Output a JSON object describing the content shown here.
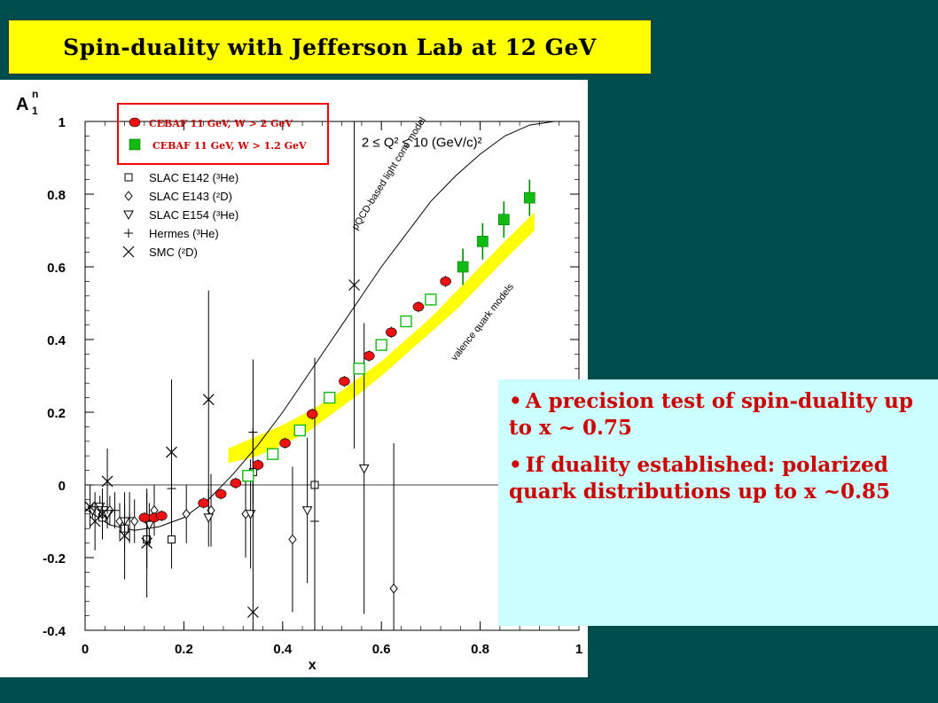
{
  "slide_title": "Spin-duality with Jefferson Lab at 12 GeV",
  "colors": {
    "background": "#004d4d",
    "title_bg": "#ffff00",
    "box_bg": "#ccffff",
    "bullet_text": "#cc0000",
    "cebaf_red": "#ee1111",
    "cebaf_green": "#11bb11",
    "band": "#ffff00"
  },
  "bullets": [
    "A precision test of spin-duality up to x ~ 0.75",
    "If duality established: polarized quark distributions up to x ~0.85"
  ],
  "chart_data": {
    "type": "scatter",
    "ylabel": "A",
    "ylabel_sub": "1",
    "ylabel_sup": "n",
    "xlabel": "x",
    "xlim": [
      0,
      1
    ],
    "ylim": [
      -0.4,
      1
    ],
    "x_ticks": [
      "0",
      "0.2",
      "0.4",
      "0.6",
      "0.8",
      "1"
    ],
    "y_ticks": [
      "-0.4",
      "-0.2",
      "0",
      "0.2",
      "0.4",
      "0.6",
      "0.8",
      "1"
    ],
    "q2_label": "2 ≤ Q² ≤ 10 (GeV/c)²",
    "legend_highlight": [
      "CEBAF 11 GeV, W > 2 GeV",
      "CEBAF 11 GeV, W > 1.2 GeV"
    ],
    "legend": [
      "SLAC E142 (³He)",
      "SLAC E143 (²D)",
      "SLAC E154 (³He)",
      "Hermes (³He)",
      "SMC (²D)"
    ],
    "curve_labels": [
      "pQCD-based light cone model",
      "valence quark models"
    ],
    "series": [
      {
        "name": "CEBAF 11 GeV, W > 2 GeV",
        "marker": "red-circle",
        "points": [
          [
            0.12,
            -0.09
          ],
          [
            0.14,
            -0.09
          ],
          [
            0.155,
            -0.085
          ],
          [
            0.24,
            -0.05
          ],
          [
            0.275,
            -0.025
          ],
          [
            0.305,
            0.005
          ],
          [
            0.35,
            0.055
          ],
          [
            0.405,
            0.115
          ],
          [
            0.46,
            0.195
          ],
          [
            0.525,
            0.285
          ],
          [
            0.575,
            0.355
          ],
          [
            0.62,
            0.42
          ],
          [
            0.675,
            0.49
          ],
          [
            0.73,
            0.56
          ]
        ],
        "err": 0.015
      },
      {
        "name": "CEBAF 11 GeV, W > 1.2 GeV",
        "marker": "green-square",
        "points": [
          [
            0.765,
            0.6
          ],
          [
            0.805,
            0.67
          ],
          [
            0.848,
            0.73
          ],
          [
            0.9,
            0.79
          ]
        ],
        "err": 0.05
      },
      {
        "name": "CEBAF 11 GeV, W > 1.2 GeV (open)",
        "marker": "open-green-square",
        "points": [
          [
            0.33,
            0.025
          ],
          [
            0.38,
            0.085
          ],
          [
            0.435,
            0.15
          ],
          [
            0.495,
            0.24
          ],
          [
            0.555,
            0.32
          ],
          [
            0.6,
            0.385
          ],
          [
            0.65,
            0.45
          ],
          [
            0.7,
            0.51
          ]
        ],
        "err": 0.015
      },
      {
        "name": "SLAC E142 (³He)",
        "marker": "open-square",
        "points": [
          [
            0.035,
            -0.09
          ],
          [
            0.08,
            -0.12
          ],
          [
            0.125,
            -0.15
          ],
          [
            0.175,
            -0.15
          ],
          [
            0.34,
            0.035
          ],
          [
            0.465,
            0.0
          ]
        ],
        "err": [
          0.04,
          0.06,
          0.08,
          0.08,
          0.12,
          0.35
        ]
      },
      {
        "name": "SLAC E143 (²D)",
        "marker": "diamond",
        "points": [
          [
            0.035,
            -0.08
          ],
          [
            0.05,
            -0.07
          ],
          [
            0.07,
            -0.1
          ],
          [
            0.1,
            -0.1
          ],
          [
            0.14,
            -0.07
          ],
          [
            0.205,
            -0.08
          ],
          [
            0.255,
            -0.07
          ],
          [
            0.325,
            -0.08
          ],
          [
            0.42,
            -0.15
          ],
          [
            0.625,
            -0.285
          ]
        ],
        "err": [
          0.03,
          0.04,
          0.05,
          0.06,
          0.07,
          0.08,
          0.1,
          0.12,
          0.2,
          0.4
        ]
      },
      {
        "name": "SLAC E154 (³He)",
        "marker": "down-triangle",
        "points": [
          [
            0.015,
            -0.07
          ],
          [
            0.03,
            -0.06
          ],
          [
            0.045,
            -0.08
          ],
          [
            0.08,
            -0.1
          ],
          [
            0.13,
            -0.11
          ],
          [
            0.25,
            -0.09
          ],
          [
            0.335,
            -0.08
          ],
          [
            0.45,
            -0.07
          ],
          [
            0.565,
            0.045
          ]
        ],
        "err": [
          0.02,
          0.03,
          0.04,
          0.05,
          0.06,
          0.08,
          0.15,
          0.2,
          0.4
        ]
      },
      {
        "name": "Hermes (³He)",
        "marker": "plus",
        "points": [
          [
            0.035,
            -0.06
          ],
          [
            0.06,
            -0.07
          ],
          [
            0.09,
            -0.09
          ],
          [
            0.125,
            -0.1
          ],
          [
            0.175,
            -0.01
          ],
          [
            0.34,
            0.145
          ],
          [
            0.465,
            -0.1
          ]
        ],
        "err": [
          0.04,
          0.05,
          0.07,
          0.08,
          0.12,
          0.2,
          0.3
        ]
      },
      {
        "name": "SMC (²D)",
        "marker": "cross",
        "points": [
          [
            0.01,
            -0.06
          ],
          [
            0.02,
            -0.1
          ],
          [
            0.035,
            -0.08
          ],
          [
            0.045,
            0.01
          ],
          [
            0.08,
            -0.14
          ],
          [
            0.125,
            -0.16
          ],
          [
            0.175,
            0.09
          ],
          [
            0.25,
            0.235
          ],
          [
            0.34,
            -0.35
          ],
          [
            0.545,
            0.55
          ]
        ],
        "err": [
          0.06,
          0.08,
          0.07,
          0.09,
          0.12,
          0.15,
          0.2,
          0.3,
          0.5,
          0.45
        ]
      }
    ],
    "pqcd_curve": [
      [
        0,
        -0.065
      ],
      [
        0.05,
        -0.11
      ],
      [
        0.1,
        -0.125
      ],
      [
        0.15,
        -0.115
      ],
      [
        0.2,
        -0.09
      ],
      [
        0.25,
        -0.04
      ],
      [
        0.3,
        0.03
      ],
      [
        0.35,
        0.11
      ],
      [
        0.4,
        0.2
      ],
      [
        0.45,
        0.3
      ],
      [
        0.5,
        0.4
      ],
      [
        0.55,
        0.5
      ],
      [
        0.6,
        0.6
      ],
      [
        0.65,
        0.69
      ],
      [
        0.7,
        0.78
      ],
      [
        0.75,
        0.85
      ],
      [
        0.8,
        0.91
      ],
      [
        0.85,
        0.96
      ],
      [
        0.9,
        0.99
      ],
      [
        0.95,
        1.0
      ]
    ],
    "valence_band_upper": [
      [
        0.29,
        0.1
      ],
      [
        0.35,
        0.135
      ],
      [
        0.4,
        0.165
      ],
      [
        0.45,
        0.2
      ],
      [
        0.5,
        0.24
      ],
      [
        0.55,
        0.29
      ],
      [
        0.6,
        0.34
      ],
      [
        0.65,
        0.4
      ],
      [
        0.7,
        0.46
      ],
      [
        0.75,
        0.53
      ],
      [
        0.8,
        0.6
      ],
      [
        0.85,
        0.67
      ],
      [
        0.91,
        0.75
      ]
    ],
    "valence_band_lower": [
      [
        0.91,
        0.7
      ],
      [
        0.85,
        0.62
      ],
      [
        0.8,
        0.55
      ],
      [
        0.75,
        0.48
      ],
      [
        0.7,
        0.42
      ],
      [
        0.65,
        0.36
      ],
      [
        0.6,
        0.3
      ],
      [
        0.55,
        0.245
      ],
      [
        0.5,
        0.195
      ],
      [
        0.45,
        0.145
      ],
      [
        0.4,
        0.11
      ],
      [
        0.35,
        0.08
      ],
      [
        0.29,
        0.06
      ]
    ]
  }
}
